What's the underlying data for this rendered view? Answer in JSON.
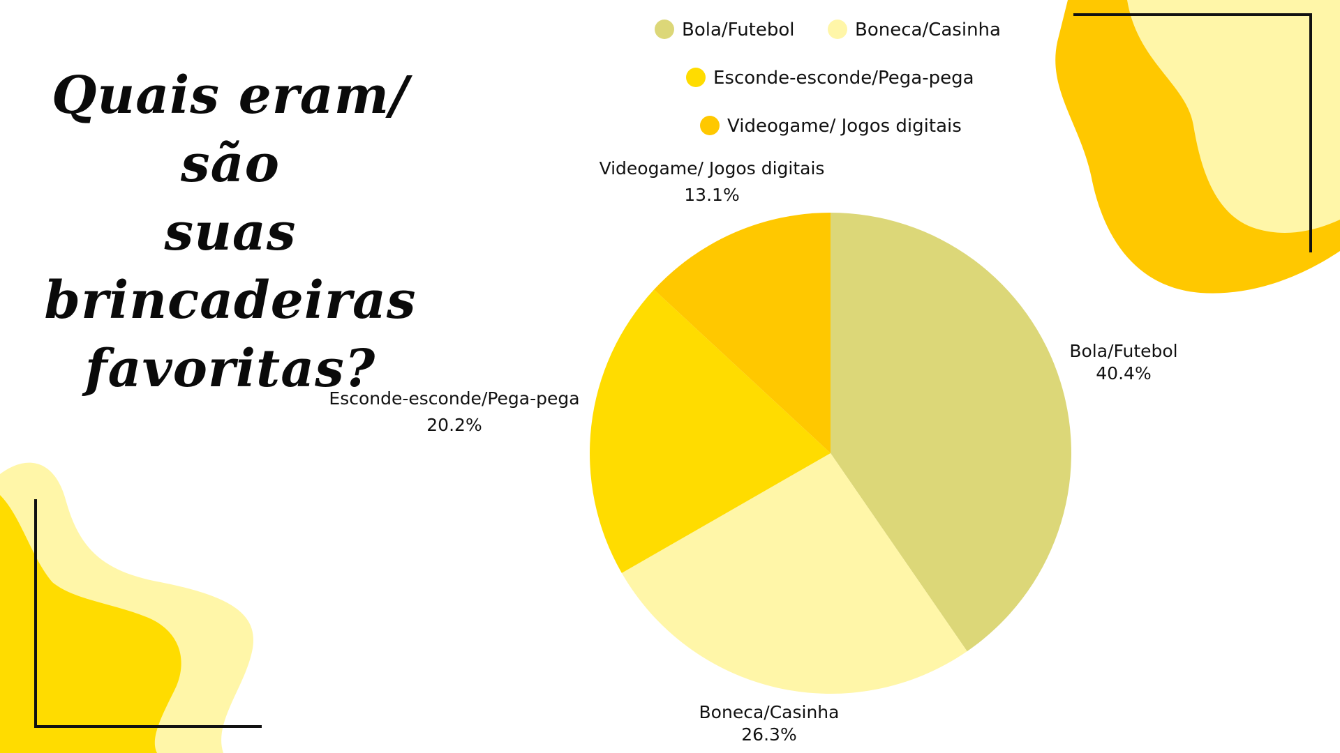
{
  "title": {
    "line1": "Quais eram/  são",
    "line2": "suas brincadeiras",
    "line3": "favoritas?"
  },
  "colors": {
    "light_yellow": "#FFF6A8",
    "yellow": "#FFDC00",
    "orange_yellow": "#FFC800",
    "olive_yellow": "#DCD778",
    "bracket": "#111111",
    "background": "#FFFFFF"
  },
  "chart_data": {
    "type": "pie",
    "legend_position": "top",
    "slices": [
      {
        "label": "Bola/Futebol",
        "value": 40.4,
        "display": "40.4%",
        "color": "#DCD778"
      },
      {
        "label": "Boneca/Casinha",
        "value": 26.3,
        "display": "26.3%",
        "color": "#FFF6A8"
      },
      {
        "label": "Esconde-esconde/Pega-pega",
        "value": 20.2,
        "display": "20.2%",
        "color": "#FFDC00"
      },
      {
        "label": "Videogame/ Jogos digitais",
        "value": 13.1,
        "display": "13.1%",
        "color": "#FFC800"
      }
    ]
  }
}
